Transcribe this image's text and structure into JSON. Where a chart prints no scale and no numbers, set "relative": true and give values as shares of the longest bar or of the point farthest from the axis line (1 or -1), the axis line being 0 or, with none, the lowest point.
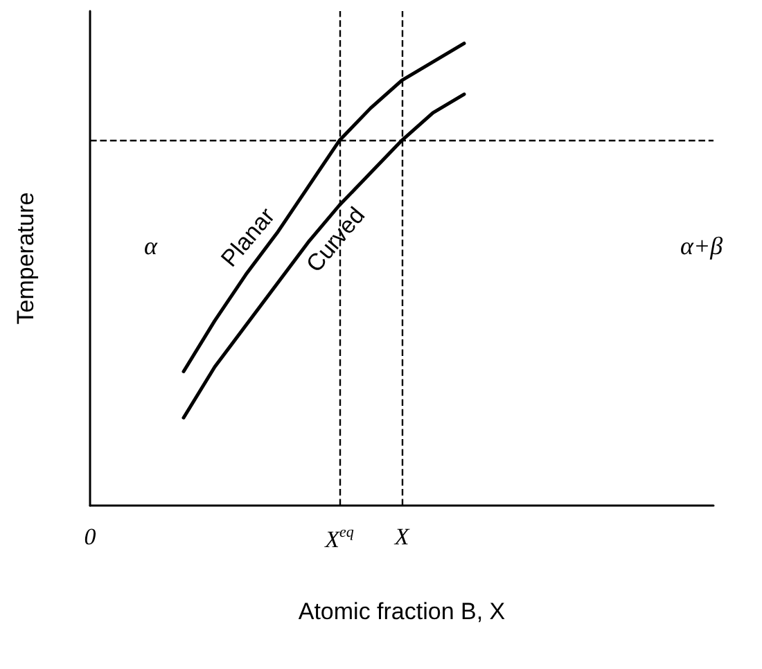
{
  "chart_data": {
    "type": "line",
    "relative": true,
    "xlabel": "Atomic fraction B, X",
    "ylabel": "Temperature",
    "categories": [
      "0",
      null,
      null,
      null,
      null,
      null,
      null,
      null,
      "X$^{eq}$",
      null,
      "X",
      null,
      null,
      null,
      null,
      null,
      null,
      null,
      null,
      null,
      null
    ],
    "series": [
      {
        "name": "Planar",
        "color": "#000000",
        "values": [
          null,
          null,
          null,
          0.29,
          0.4,
          0.5,
          0.59,
          0.69,
          0.79,
          0.86,
          0.92,
          0.96,
          1.0,
          null,
          null,
          null,
          null,
          null,
          null,
          null,
          null
        ]
      },
      {
        "name": "Curved",
        "color": "#000000",
        "values": [
          null,
          null,
          null,
          0.19,
          0.3,
          0.39,
          0.48,
          0.57,
          0.65,
          0.72,
          0.79,
          0.85,
          0.89,
          null,
          null,
          null,
          null,
          null,
          null,
          null,
          null
        ]
      }
    ],
    "ref_lines": [
      {
        "axis": "x",
        "value": "X$^{eq}$",
        "line_style": "dashed"
      },
      {
        "axis": "x",
        "value": "X",
        "line_style": "dashed"
      },
      {
        "axis": "y",
        "value": 0.79,
        "line_style": "dashed"
      }
    ],
    "annotations": [
      "α",
      "α+β"
    ],
    "marker": "none",
    "line_style": "solid",
    "grid": false,
    "legend": false
  }
}
